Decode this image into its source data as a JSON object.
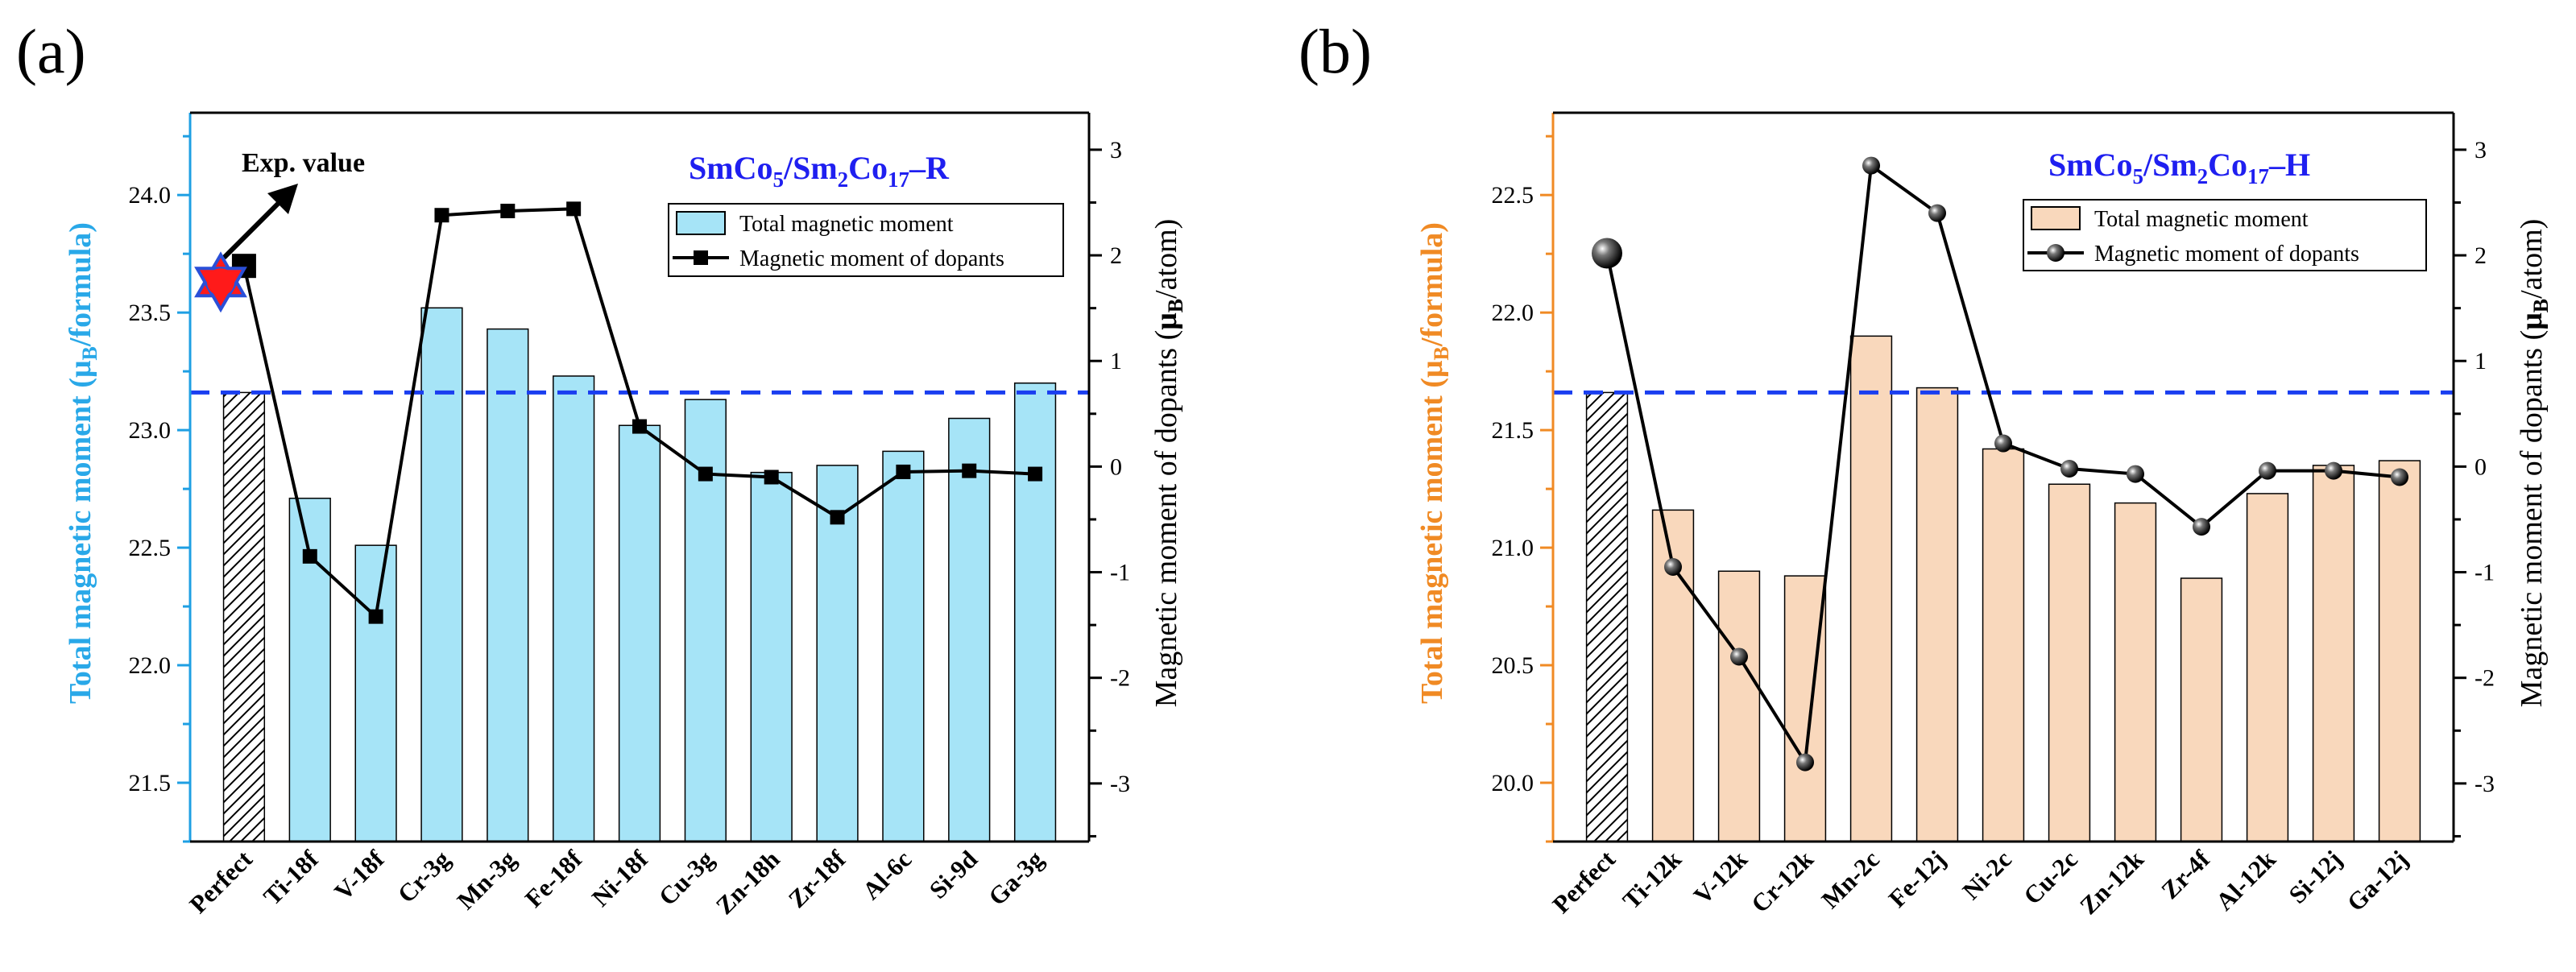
{
  "chart_data": [
    {
      "panel": "(a)",
      "type": "bar",
      "title": "SmCo5/Sm2Co17–R",
      "title_parts": {
        "a": "SmCo",
        "b": "5",
        "c": "/Sm",
        "d": "2",
        "e": "Co",
        "f": "17",
        "g": "–R"
      },
      "categories": [
        "Perfect",
        "Ti-18f",
        "V-18f",
        "Cr-3g",
        "Mn-3g",
        "Fe-18f",
        "Ni-18f",
        "Cu-3g",
        "Zn-18h",
        "Zr-18f",
        "Al-6c",
        "Si-9d",
        "Ga-3g"
      ],
      "ylabel_left": {
        "main": "Total magnetic moment (μ",
        "sub": "B",
        "rest": "/formula)"
      },
      "ylabel_right": {
        "main": "Magnetic moment of dopants (",
        "bold": "μ",
        "sub": "B",
        "rest": "/atom)"
      },
      "ylim_left": [
        21.25,
        24.35
      ],
      "yticks_left": [
        "21.5",
        "22.0",
        "22.5",
        "23.0",
        "23.5",
        "24.0"
      ],
      "ylim_right": [
        -3.55,
        3.35
      ],
      "yticks_right": [
        "-3",
        "-2",
        "-1",
        "0",
        "1",
        "2",
        "3"
      ],
      "bar_values": [
        23.16,
        22.71,
        22.51,
        23.52,
        23.43,
        23.23,
        23.02,
        23.13,
        22.82,
        22.85,
        22.91,
        23.05,
        23.2
      ],
      "line_values": [
        1.9,
        -0.85,
        -1.42,
        2.38,
        2.42,
        2.44,
        0.38,
        -0.07,
        -0.1,
        -0.48,
        -0.05,
        -0.04,
        -0.07
      ],
      "reference_line": 23.16,
      "exp_value": 23.63,
      "exp_label": "Exp. value",
      "legend": [
        "Total magnetic moment",
        "Magnetic moment of dopants"
      ],
      "bar_color": "#a6e4f7",
      "axis_color": "#1e9fe3",
      "marker": "square"
    },
    {
      "panel": "(b)",
      "type": "bar",
      "title": "SmCo5/Sm2Co17–H",
      "title_parts": {
        "a": "SmCo",
        "b": "5",
        "c": "/Sm",
        "d": "2",
        "e": "Co",
        "f": "17",
        "g": "–H"
      },
      "categories": [
        "Perfect",
        "Ti-12k",
        "V-12k",
        "Cr-12k",
        "Mn-2c",
        "Fe-12j",
        "Ni-2c",
        "Cu-2c",
        "Zn-12k",
        "Zr-4f",
        "Al-12k",
        "Si-12j",
        "Ga-12j"
      ],
      "ylabel_left": {
        "main": "Total magnetic moment (μ",
        "sub": "B",
        "rest": "/formula)"
      },
      "ylabel_right": {
        "main": "Magnetic moment of dopants (",
        "bold": "μ",
        "sub": "B",
        "rest": "/atom)"
      },
      "ylim_left": [
        19.75,
        22.85
      ],
      "yticks_left": [
        "20.0",
        "20.5",
        "21.0",
        "21.5",
        "22.0",
        "22.5"
      ],
      "ylim_right": [
        -3.55,
        3.35
      ],
      "yticks_right": [
        "-3",
        "-2",
        "-1",
        "0",
        "1",
        "2",
        "3"
      ],
      "bar_values": [
        21.66,
        21.16,
        20.9,
        20.88,
        21.9,
        21.68,
        21.42,
        21.27,
        21.19,
        20.87,
        21.23,
        21.35,
        21.37
      ],
      "line_values": [
        2.02,
        -0.95,
        -1.8,
        -2.8,
        2.85,
        2.4,
        0.22,
        -0.02,
        -0.07,
        -0.57,
        -0.04,
        -0.04,
        -0.1
      ],
      "reference_line": 21.66,
      "legend": [
        "Total magnetic moment",
        "Magnetic moment of dopants"
      ],
      "bar_color": "#f9d8bc",
      "axis_color": "#f08a24",
      "marker": "sphere"
    }
  ]
}
